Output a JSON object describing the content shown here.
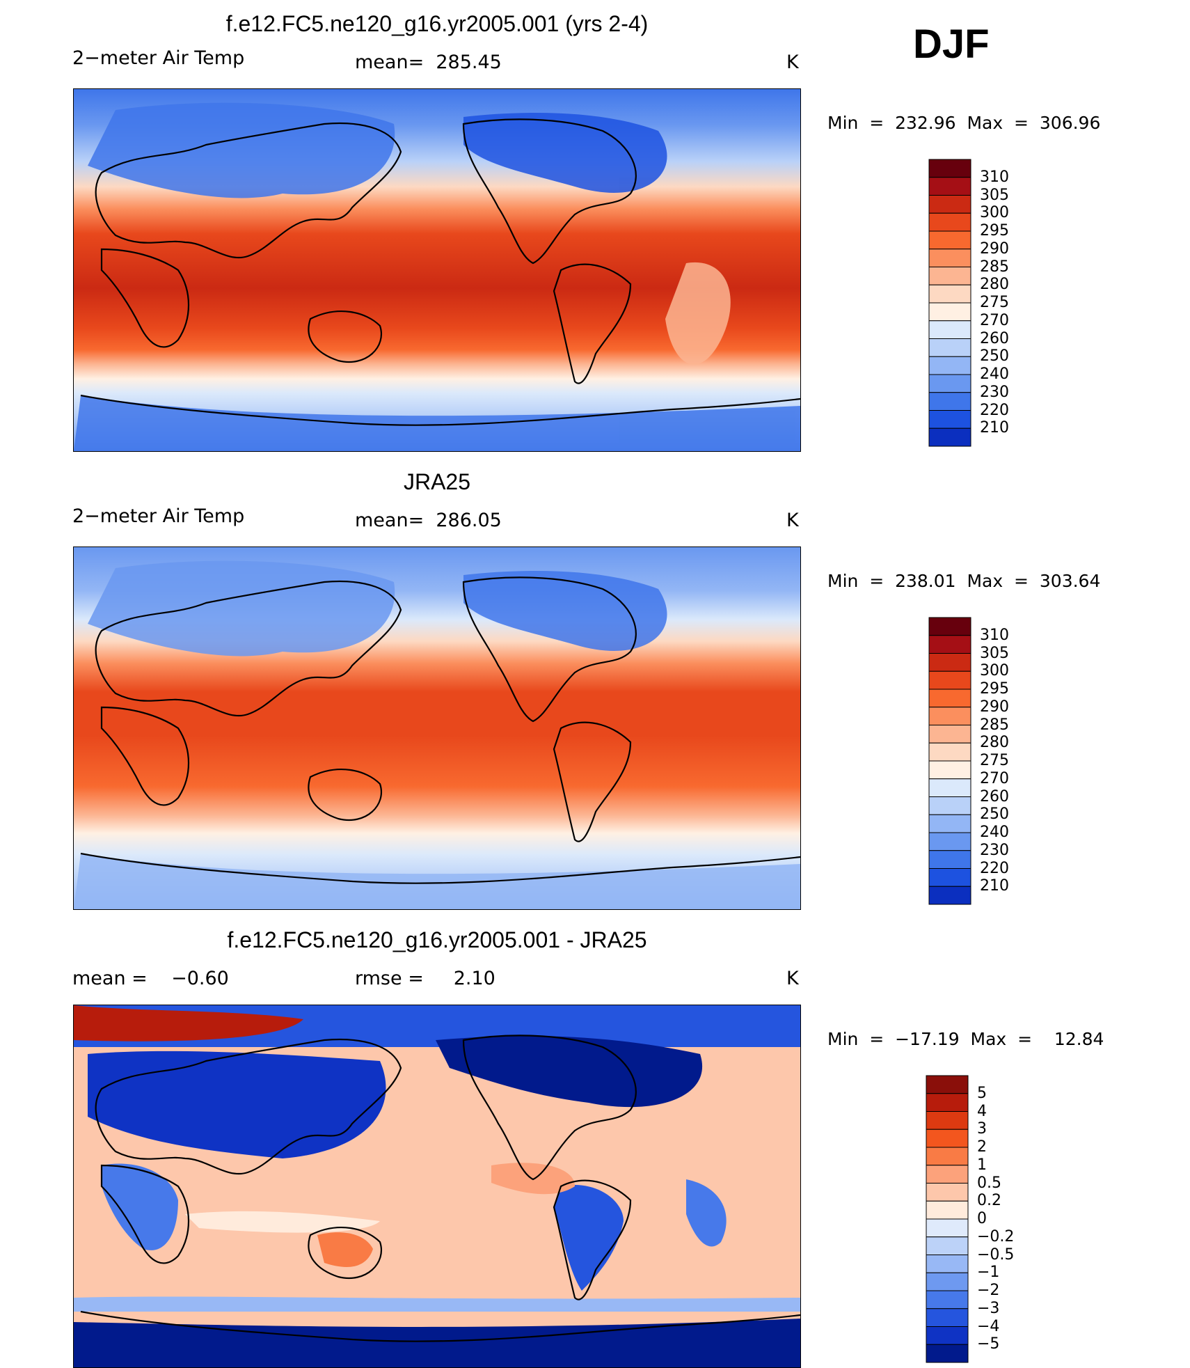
{
  "season": "DJF",
  "panels": [
    {
      "title": "f.e12.FC5.ne120_g16.yr2005.001 (yrs 2-4)",
      "left_label": "2−meter Air Temp",
      "center_label": "mean=  285.45",
      "units": "K",
      "minmax": "Min  =  232.96  Max  =  306.96",
      "colorbar_labels": [
        "310",
        "305",
        "300",
        "295",
        "290",
        "285",
        "280",
        "275",
        "270",
        "260",
        "250",
        "240",
        "230",
        "220",
        "210"
      ],
      "kind": "model"
    },
    {
      "title": "JRA25",
      "left_label": "2−meter Air Temp",
      "center_label": "mean=  286.05",
      "units": "K",
      "minmax": "Min  =  238.01  Max  =  303.64",
      "colorbar_labels": [
        "310",
        "305",
        "300",
        "295",
        "290",
        "285",
        "280",
        "275",
        "270",
        "260",
        "250",
        "240",
        "230",
        "220",
        "210"
      ],
      "kind": "obs"
    },
    {
      "title": "f.e12.FC5.ne120_g16.yr2005.001 - JRA25",
      "left_label": "mean =    −0.60",
      "center_label": "rmse =     2.10",
      "units": "K",
      "minmax": "Min  =  −17.19  Max  =    12.84",
      "colorbar_labels": [
        "5",
        "4",
        "3",
        "2",
        "1",
        "0.5",
        "0.2",
        "0",
        "−0.2",
        "−0.5",
        "−1",
        "−2",
        "−3",
        "−4",
        "−5"
      ],
      "kind": "diff"
    }
  ],
  "colors": {
    "abs_scale": [
      "#67000d",
      "#a50f15",
      "#cb2a13",
      "#e8481c",
      "#f8692f",
      "#fb8f5e",
      "#fcb592",
      "#fdd9c2",
      "#fff0e3",
      "#dbe9fb",
      "#b9d1f8",
      "#93b6f5",
      "#6a98f0",
      "#3f76ea",
      "#1d52e0",
      "#0b2fbf",
      "#001a8c"
    ],
    "diff_scale": [
      "#8a0f0a",
      "#b71c0c",
      "#dd3a11",
      "#f3561e",
      "#f97b45",
      "#fca27b",
      "#fdc7ab",
      "#ffebdc",
      "#dfeafb",
      "#bcd2f8",
      "#98b8f5",
      "#6e99f0",
      "#4779ea",
      "#2555de",
      "#0f33c4",
      "#011a8c"
    ]
  }
}
